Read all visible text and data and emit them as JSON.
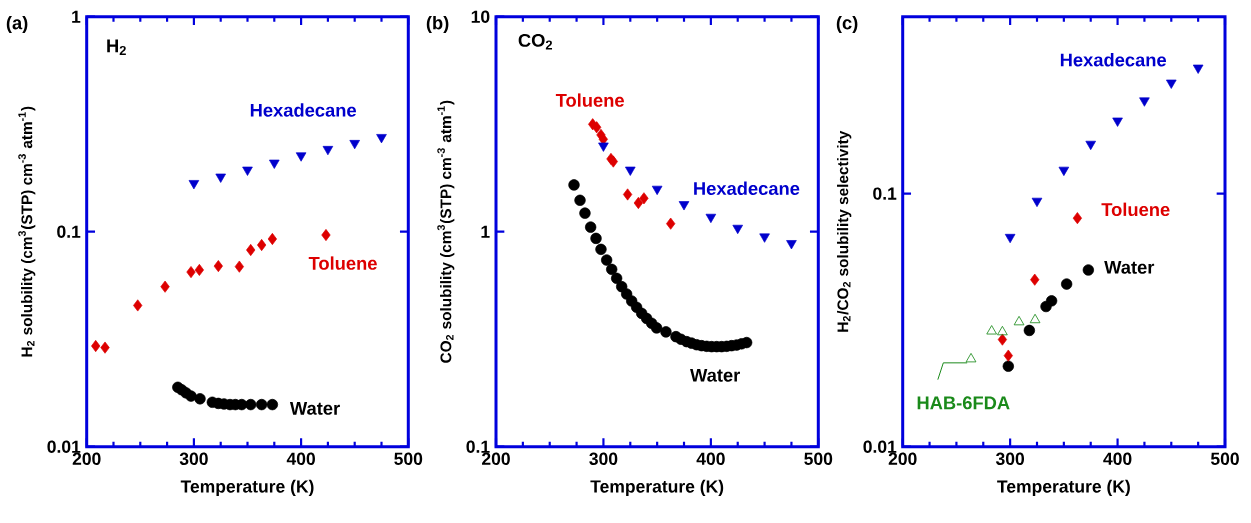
{
  "chart_data": [
    {
      "type": "scatter",
      "title": "(a)",
      "xlabel": "Temperature (K)",
      "ylabel": "H$_{2}$ solubility (cm$^{3}$(STP) cm$^{-3}$ atm$^{-1}$)",
      "annotations": [
        "H$_{2}$"
      ],
      "log": "y",
      "xlim": [
        200,
        500
      ],
      "ylim": [
        0.01,
        1
      ],
      "xticks": [
        200,
        300,
        400,
        500
      ],
      "yticks": [
        0.01,
        0.1,
        1
      ],
      "series": [
        {
          "name": "Water",
          "color": "#000000",
          "marker": "circle",
          "x": [
            285,
            288.6,
            292.6,
            297.3,
            305.7,
            317.2,
            322.8,
            328.1,
            333.7,
            338.7,
            344.6,
            353,
            363.2,
            373.2
          ],
          "values": [
            0.0189,
            0.0184,
            0.0178,
            0.0172,
            0.0167,
            0.0161,
            0.0159,
            0.0158,
            0.0157,
            0.0157,
            0.0157,
            0.0157,
            0.0157,
            0.0157
          ]
        },
        {
          "name": "Toluene",
          "color": "#dd0000",
          "marker": "diamond",
          "x": [
            208.4,
            217.1,
            247.6,
            273.1,
            297.3,
            305.1,
            322.8,
            342.4,
            353,
            363.2,
            373.2,
            423.2
          ],
          "values": [
            0.0294,
            0.0289,
            0.0454,
            0.0555,
            0.0649,
            0.0664,
            0.0692,
            0.0688,
            0.0822,
            0.0867,
            0.0925,
            0.0965
          ]
        },
        {
          "name": "Hexadecane",
          "color": "#0000cc",
          "marker": "triangle-down",
          "x": [
            300,
            325,
            350,
            375,
            400,
            425,
            450,
            475
          ],
          "values": [
            0.168,
            0.18,
            0.194,
            0.209,
            0.226,
            0.242,
            0.258,
            0.275
          ]
        }
      ]
    },
    {
      "type": "scatter",
      "title": "(b)",
      "xlabel": "Temperature (K)",
      "ylabel": "CO$_{2}$ solubility (cm$^{3}$(STP) cm$^{-3}$ atm$^{-1}$)",
      "annotations": [
        "CO$_{2}$"
      ],
      "log": "y",
      "xlim": [
        200,
        500
      ],
      "ylim": [
        0.1,
        10
      ],
      "xticks": [
        200,
        300,
        400,
        500
      ],
      "yticks": [
        0.1,
        1,
        10
      ],
      "series": [
        {
          "name": "Water",
          "color": "#000000",
          "marker": "circle",
          "x": [
            272.6,
            278.2,
            282.8,
            288.1,
            293.1,
            297.7,
            303,
            307.7,
            312.3,
            317,
            321.6,
            326.3,
            330.9,
            335.6,
            340.2,
            344.9,
            349.5,
            354.2,
            358.2,
            367.5,
            372.2,
            377.5,
            382.1,
            386.8,
            391.4,
            396.1,
            400.7,
            405.4,
            410,
            414.7,
            419.3,
            424,
            428.6,
            433.3
          ],
          "values": [
            1.65,
            1.4,
            1.22,
            1.05,
            0.931,
            0.828,
            0.738,
            0.668,
            0.607,
            0.555,
            0.513,
            0.476,
            0.445,
            0.417,
            0.395,
            0.375,
            0.357,
            null,
            0.342,
            0.325,
            0.316,
            0.308,
            0.303,
            0.298,
            0.295,
            0.293,
            0.292,
            0.292,
            0.292,
            0.293,
            0.295,
            0.297,
            0.301,
            0.305
          ]
        },
        {
          "name": "Toluene",
          "color": "#dd0000",
          "marker": "diamond",
          "x": [
            290,
            293.7,
            297.7,
            299.9,
            307,
            309.2,
            322.5,
            332.5,
            337.7,
            362.6
          ],
          "values": [
            3.16,
            3.06,
            2.82,
            2.69,
            2.18,
            2.12,
            1.49,
            1.36,
            1.43,
            1.09
          ]
        },
        {
          "name": "Hexadecane",
          "color": "#0000cc",
          "marker": "triangle-down",
          "x": [
            300,
            325,
            350,
            375,
            400,
            425,
            450,
            475
          ],
          "values": [
            2.51,
            1.94,
            1.58,
            1.34,
            1.17,
            1.04,
            0.948,
            0.883
          ]
        }
      ]
    },
    {
      "type": "scatter",
      "title": "(c)",
      "xlabel": "Temperature (K)",
      "ylabel": "H$_{2}$/CO$_{2}$ solubility selectivity",
      "log": "y",
      "xlim": [
        200,
        500
      ],
      "ylim": [
        0.01,
        0.5
      ],
      "xticks": [
        200,
        300,
        400,
        500
      ],
      "yticks": [
        0.01,
        0.1
      ],
      "series": [
        {
          "name": "Water",
          "color": "#000000",
          "marker": "circle",
          "x": [
            298.3,
            317.9,
            333.4,
            338.6,
            352.6,
            372.8
          ],
          "values": [
            0.0208,
            0.0288,
            0.0358,
            0.0377,
            0.0439,
            0.0499
          ]
        },
        {
          "name": "Toluene",
          "color": "#dd0000",
          "marker": "diamond",
          "x": [
            292.8,
            298.3,
            322.9,
            362.6
          ],
          "values": [
            0.0265,
            0.0229,
            0.0457,
            0.08
          ]
        },
        {
          "name": "Hexadecane",
          "color": "#0000cc",
          "marker": "triangle-down",
          "x": [
            300,
            325,
            350,
            375,
            400,
            425,
            450,
            475
          ],
          "values": [
            0.0673,
            0.0935,
            0.124,
            0.157,
            0.194,
            0.233,
            0.274,
            0.314
          ]
        },
        {
          "name": "HAB-6FDA",
          "color": "#1a8a1a",
          "marker": "triangle",
          "x": [
            263.6,
            282.8,
            292.8,
            308.3,
            323.2
          ],
          "values": [
            0.0222,
            0.0286,
            0.0284,
            0.0311,
            0.0317
          ]
        }
      ]
    }
  ]
}
